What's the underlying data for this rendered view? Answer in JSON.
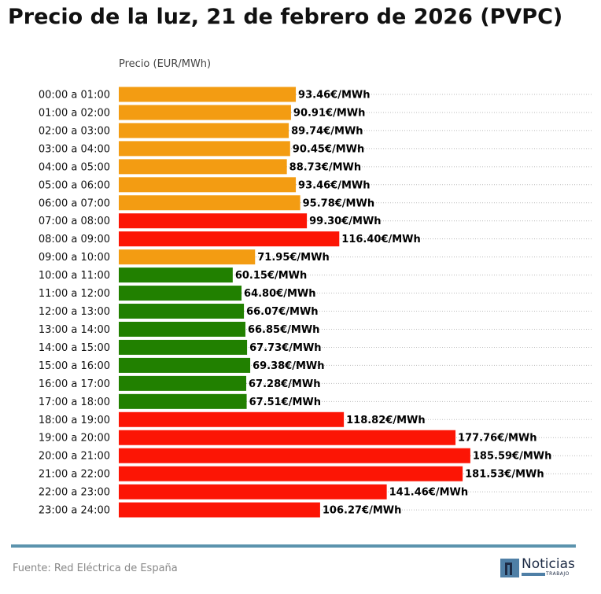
{
  "chart_data": {
    "type": "bar",
    "orientation": "horizontal",
    "title": "Precio de la luz, 21 de febrero de 2026 (PVPC)",
    "xlabel": "Precio (EUR/MWh)",
    "ylabel": "",
    "xlim": [
      0,
      250
    ],
    "grid": "dotted horizontal",
    "value_suffix": "€/MWh",
    "categories": [
      "00:00 a 01:00",
      "01:00 a 02:00",
      "02:00 a 03:00",
      "03:00 a 04:00",
      "04:00 a 05:00",
      "05:00 a 06:00",
      "06:00 a 07:00",
      "07:00 a 08:00",
      "08:00 a 09:00",
      "09:00 a 10:00",
      "10:00 a 11:00",
      "11:00 a 12:00",
      "12:00 a 13:00",
      "13:00 a 14:00",
      "14:00 a 15:00",
      "15:00 a 16:00",
      "16:00 a 17:00",
      "17:00 a 18:00",
      "18:00 a 19:00",
      "19:00 a 20:00",
      "20:00 a 21:00",
      "21:00 a 22:00",
      "22:00 a 23:00",
      "23:00 a 24:00"
    ],
    "values": [
      93.46,
      90.91,
      89.74,
      90.45,
      88.73,
      93.46,
      95.78,
      99.3,
      116.4,
      71.95,
      60.15,
      64.8,
      66.07,
      66.85,
      67.73,
      69.38,
      67.28,
      67.51,
      118.82,
      177.76,
      185.59,
      181.53,
      141.46,
      106.27
    ],
    "levels": [
      "mid",
      "mid",
      "mid",
      "mid",
      "mid",
      "mid",
      "mid",
      "high",
      "high",
      "mid",
      "low",
      "low",
      "low",
      "low",
      "low",
      "low",
      "low",
      "low",
      "high",
      "high",
      "high",
      "high",
      "high",
      "high"
    ],
    "colors": {
      "low": "#218000",
      "mid": "#f39c12",
      "high": "#fc1505"
    }
  },
  "footer": {
    "source": "Fuente: Red Eléctrica de España",
    "logo_text": "Noticias",
    "logo_sub": "TRABAJO"
  }
}
